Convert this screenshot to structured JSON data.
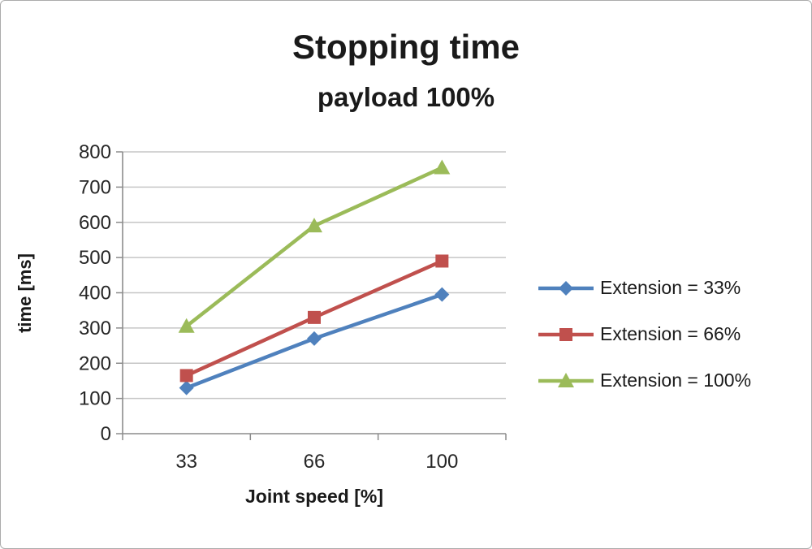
{
  "chart_data": {
    "type": "line",
    "title": "Stopping time",
    "subtitle": "payload 100%",
    "xlabel": "Joint speed [%]",
    "ylabel": "time [ms]",
    "categories": [
      "33",
      "66",
      "100"
    ],
    "series": [
      {
        "name": "Extension = 33%",
        "values": [
          130,
          270,
          395
        ],
        "color": "#4F81BD",
        "marker": "diamond"
      },
      {
        "name": "Extension = 66%",
        "values": [
          165,
          330,
          490
        ],
        "color": "#C0504D",
        "marker": "square"
      },
      {
        "name": "Extension = 100%",
        "values": [
          305,
          590,
          755
        ],
        "color": "#9BBB59",
        "marker": "triangle"
      }
    ],
    "ylim": [
      0,
      800
    ],
    "ytick_step": 100,
    "grid": true,
    "legend_position": "right",
    "axis_color": "#8c8c8c",
    "grid_color": "#c6c6c6",
    "tick_label_color": "#262626"
  }
}
